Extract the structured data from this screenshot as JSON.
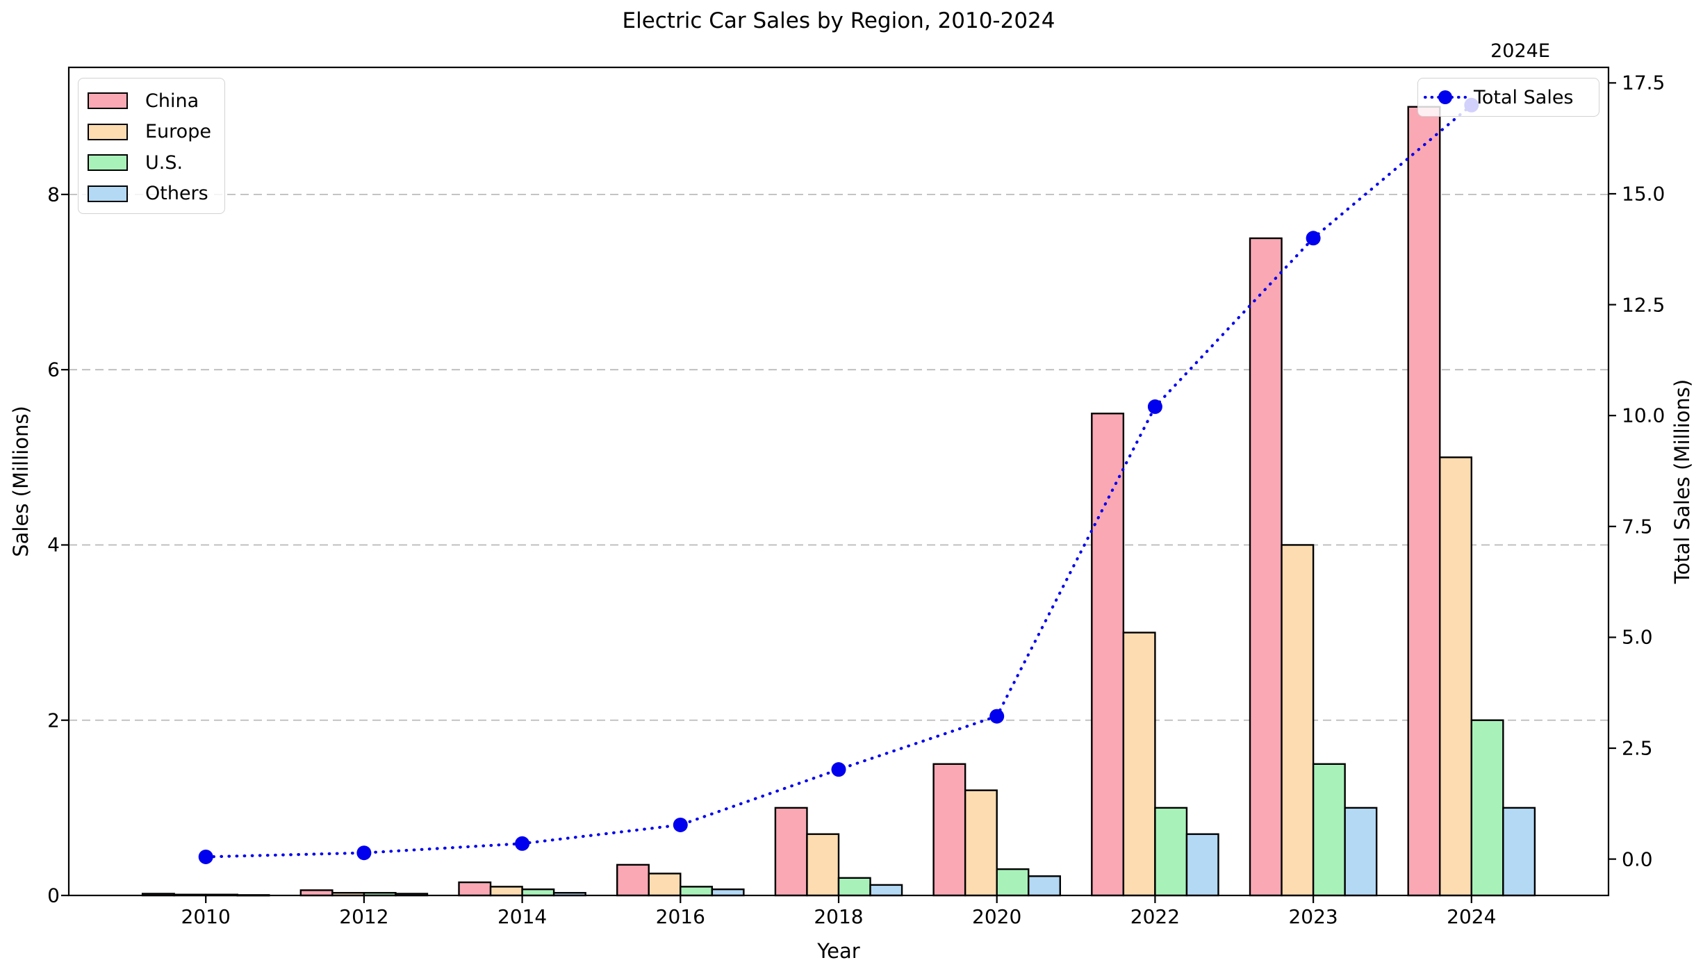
{
  "title": "Electric Car Sales by Region, 2010-2024",
  "annotation": "2024E",
  "axes": {
    "x_label": "Year",
    "y_left_label": "Sales (Millions)",
    "y_right_label": "Total Sales (Millions)",
    "y_left_ticks": [
      {
        "v": 0,
        "label": "0"
      },
      {
        "v": 2,
        "label": "2"
      },
      {
        "v": 4,
        "label": "4"
      },
      {
        "v": 6,
        "label": "6"
      },
      {
        "v": 8,
        "label": "8"
      }
    ],
    "y_right_ticks": [
      {
        "v": 0,
        "label": "0.0"
      },
      {
        "v": 2.5,
        "label": "2.5"
      },
      {
        "v": 5,
        "label": "5.0"
      },
      {
        "v": 7.5,
        "label": "7.5"
      },
      {
        "v": 10,
        "label": "10.0"
      },
      {
        "v": 12.5,
        "label": "12.5"
      },
      {
        "v": 15,
        "label": "15.0"
      },
      {
        "v": 17.5,
        "label": "17.5"
      }
    ],
    "gridline_values": [
      2,
      4,
      6,
      8
    ],
    "grid_color": "#bcbcbc",
    "spine_color": "#000000"
  },
  "chart_data": {
    "type": "bar+line",
    "categories": [
      "2010",
      "2012",
      "2014",
      "2016",
      "2018",
      "2020",
      "2022",
      "2023",
      "2024"
    ],
    "x_range": [
      -0.866,
      8.866
    ],
    "y_left_range": [
      0,
      9.45
    ],
    "y_right_range": [
      -0.82,
      17.85
    ],
    "bar_width_units": 0.2,
    "bar_edge_color": "#000000",
    "series": [
      {
        "name": "China",
        "color": "#f9a8b4",
        "values": [
          0.02,
          0.06,
          0.15,
          0.35,
          1.0,
          1.5,
          5.5,
          7.5,
          9.0
        ]
      },
      {
        "name": "Europe",
        "color": "#fcdcb0",
        "values": [
          0.01,
          0.03,
          0.1,
          0.25,
          0.7,
          1.2,
          3.0,
          4.0,
          5.0
        ]
      },
      {
        "name": "U.S.",
        "color": "#a8f2ba",
        "values": [
          0.01,
          0.03,
          0.07,
          0.1,
          0.2,
          0.3,
          1.0,
          1.5,
          2.0
        ]
      },
      {
        "name": "Others",
        "color": "#b3d9f5",
        "values": [
          0.005,
          0.02,
          0.03,
          0.07,
          0.12,
          0.22,
          0.7,
          1.0,
          1.0
        ]
      }
    ],
    "line_series": {
      "name": "Total Sales",
      "color": "#0000ee",
      "axis": "right",
      "style": "dotted-with-circle-markers",
      "values": [
        0.05,
        0.14,
        0.35,
        0.77,
        2.02,
        3.22,
        10.2,
        14.0,
        17.0
      ]
    },
    "legend_positions": {
      "regions": "upper left",
      "total": "upper right"
    },
    "grid": "dashed horizontal at left-axis ticks 2,4,6,8"
  }
}
